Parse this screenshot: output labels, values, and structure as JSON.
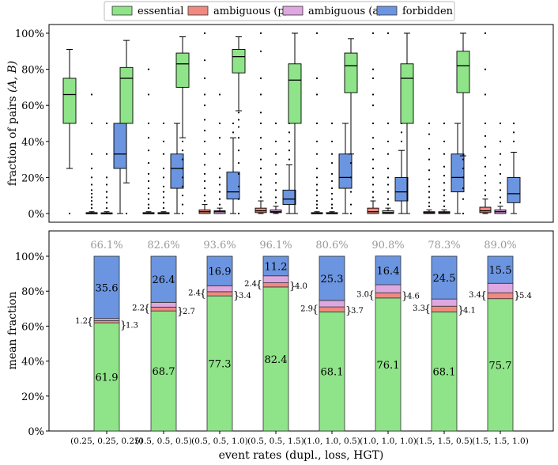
{
  "legend": {
    "entries": [
      {
        "label": "essential",
        "color": "#8fe388"
      },
      {
        "label": "ambiguous (p)",
        "color": "#f08a80"
      },
      {
        "label": "ambiguous (a)",
        "color": "#dfa7e0"
      },
      {
        "label": "forbidden",
        "color": "#6b95e0"
      }
    ]
  },
  "chart_data": [
    {
      "type": "box",
      "ylabel": "fraction of pairs (A, B)",
      "ylabel_prefix": "fraction of pairs ",
      "ylabel_vars": "(A, B)",
      "ylim": [
        0,
        100
      ],
      "yticks": [
        0,
        20,
        40,
        60,
        80,
        100
      ],
      "ytick_labels": [
        "0%",
        "20%",
        "40%",
        "60%",
        "80%",
        "100%"
      ],
      "series_order": [
        "essential",
        "ambiguous (p)",
        "ambiguous (a)",
        "forbidden"
      ],
      "groups": [
        {
          "category": "(0.25, 0.25, 0.25)",
          "boxes": [
            {
              "min": 25,
              "q1": 50,
              "median": 66,
              "q3": 75,
              "max": 91,
              "outliers": [
                0
              ]
            },
            {
              "min": 0,
              "q1": 0,
              "median": 0,
              "q3": 0.5,
              "max": 1,
              "outliers": [
                3,
                5,
                7,
                9,
                11,
                13,
                16,
                20,
                25,
                33,
                50,
                66
              ]
            },
            {
              "min": 0,
              "q1": 0,
              "median": 0,
              "q3": 0.4,
              "max": 1,
              "outliers": [
                3,
                6,
                9,
                12,
                16,
                20,
                33,
                50
              ]
            },
            {
              "min": 0,
              "q1": 25,
              "median": 33,
              "q3": 50,
              "max": 50,
              "outliers": []
            }
          ]
        },
        {
          "category": "(0.5, 0.5, 0.5)",
          "boxes": [
            {
              "min": 17,
              "q1": 50,
              "median": 75,
              "q3": 81,
              "max": 96,
              "outliers": [
                0
              ]
            },
            {
              "min": 0,
              "q1": 0,
              "median": 0,
              "q3": 0.5,
              "max": 1,
              "outliers": [
                3,
                5,
                8,
                11,
                14,
                18,
                22,
                28,
                35,
                42,
                50,
                66,
                80
              ]
            },
            {
              "min": 0,
              "q1": 0,
              "median": 0,
              "q3": 0.5,
              "max": 1,
              "outliers": [
                3,
                6,
                9,
                12,
                15,
                20,
                25,
                33,
                40,
                50
              ]
            },
            {
              "min": 0,
              "q1": 14,
              "median": 25,
              "q3": 33,
              "max": 50,
              "outliers": []
            }
          ]
        },
        {
          "category": "(0.5, 0.5, 1.0)",
          "boxes": [
            {
              "min": 42,
              "q1": 70,
              "median": 83,
              "q3": 89,
              "max": 98,
              "outliers": [
                0,
                5,
                10,
                15,
                20,
                25,
                30,
                35,
                40
              ]
            },
            {
              "min": 0,
              "q1": 0,
              "median": 1,
              "q3": 2,
              "max": 5,
              "outliers": [
                7,
                10,
                14,
                18,
                22,
                27,
                33,
                40,
                46,
                52,
                60,
                66,
                75,
                85,
                100
              ]
            },
            {
              "min": 0,
              "q1": 0,
              "median": 1,
              "q3": 1.5,
              "max": 3,
              "outliers": [
                5,
                8,
                12,
                16,
                20,
                25,
                33,
                42,
                50,
                66
              ]
            },
            {
              "min": 0,
              "q1": 8,
              "median": 12,
              "q3": 23,
              "max": 42,
              "outliers": [
                45,
                50
              ]
            }
          ]
        },
        {
          "category": "(0.5, 0.5, 1.5)",
          "boxes": [
            {
              "min": 57,
              "q1": 78,
              "median": 87,
              "q3": 91,
              "max": 98,
              "outliers": [
                0,
                8,
                15,
                22,
                28,
                35,
                42,
                48,
                52,
                56
              ]
            },
            {
              "min": 0,
              "q1": 0.5,
              "median": 1.5,
              "q3": 3,
              "max": 7,
              "outliers": [
                9,
                12,
                16,
                20,
                25,
                30,
                36,
                42,
                50,
                56,
                66,
                75,
                90,
                100
              ]
            },
            {
              "min": 0,
              "q1": 0.5,
              "median": 1,
              "q3": 2,
              "max": 4,
              "outliers": [
                6,
                9,
                13,
                17,
                22,
                27,
                33,
                40,
                50
              ]
            },
            {
              "min": 0,
              "q1": 5,
              "median": 8,
              "q3": 13,
              "max": 27,
              "outliers": [
                30,
                35,
                40,
                45,
                50
              ]
            }
          ]
        },
        {
          "category": "(1.0, 1.0, 0.5)",
          "boxes": [
            {
              "min": 0,
              "q1": 50,
              "median": 74,
              "q3": 83,
              "max": 100,
              "outliers": []
            },
            {
              "min": 0,
              "q1": 0,
              "median": 0,
              "q3": 0.5,
              "max": 1,
              "outliers": [
                3,
                5,
                7,
                10,
                13,
                16,
                20,
                25,
                33,
                40,
                50,
                66,
                75,
                100
              ]
            },
            {
              "min": 0,
              "q1": 0,
              "median": 0,
              "q3": 0.5,
              "max": 1,
              "outliers": [
                3,
                5,
                8,
                11,
                14,
                18,
                22,
                28,
                33,
                40,
                50
              ]
            },
            {
              "min": 0,
              "q1": 14,
              "median": 20,
              "q3": 33,
              "max": 50,
              "outliers": []
            }
          ]
        },
        {
          "category": "(1.0, 1.0, 1.0)",
          "boxes": [
            {
              "min": 33,
              "q1": 67,
              "median": 82,
              "q3": 89,
              "max": 97,
              "outliers": [
                0,
                5,
                12,
                20,
                28
              ]
            },
            {
              "min": 0,
              "q1": 0,
              "median": 1,
              "q3": 3,
              "max": 7,
              "outliers": [
                9,
                12,
                16,
                20,
                25,
                30,
                36,
                42,
                50,
                60,
                66,
                75,
                80,
                100
              ]
            },
            {
              "min": 0,
              "q1": 0,
              "median": 0.5,
              "q3": 1.5,
              "max": 3,
              "outliers": [
                5,
                8,
                12,
                16,
                20,
                25,
                33,
                40,
                50,
                100
              ]
            },
            {
              "min": 0,
              "q1": 7,
              "median": 12,
              "q3": 20,
              "max": 35,
              "outliers": [
                40,
                45,
                50
              ]
            }
          ]
        },
        {
          "category": "(1.5, 1.5, 0.5)",
          "boxes": [
            {
              "min": 0,
              "q1": 50,
              "median": 75,
              "q3": 83,
              "max": 100,
              "outliers": []
            },
            {
              "min": 0,
              "q1": 0,
              "median": 0.5,
              "q3": 1,
              "max": 2,
              "outliers": [
                4,
                6,
                9,
                12,
                15,
                19,
                24,
                30,
                36,
                44,
                50
              ]
            },
            {
              "min": 0,
              "q1": 0,
              "median": 0.5,
              "q3": 1,
              "max": 2,
              "outliers": [
                4,
                7,
                10,
                13,
                17,
                21,
                26,
                33,
                40,
                50
              ]
            },
            {
              "min": 0,
              "q1": 12,
              "median": 20,
              "q3": 33,
              "max": 50,
              "outliers": []
            }
          ]
        },
        {
          "category": "(1.5, 1.5, 1.0)",
          "boxes": [
            {
              "min": 32,
              "q1": 67,
              "median": 82,
              "q3": 90,
              "max": 100,
              "outliers": [
                0,
                8,
                14,
                20,
                25,
                30
              ]
            },
            {
              "min": 0,
              "q1": 0.5,
              "median": 1.5,
              "q3": 3.5,
              "max": 8,
              "outliers": [
                10,
                13,
                17,
                21,
                26,
                31,
                37,
                43,
                50,
                66,
                80,
                100
              ]
            },
            {
              "min": 0,
              "q1": 0,
              "median": 1,
              "q3": 2,
              "max": 4,
              "outliers": [
                6,
                9,
                13,
                17,
                22,
                27,
                33,
                40,
                50
              ]
            },
            {
              "min": 0,
              "q1": 6,
              "median": 11,
              "q3": 20,
              "max": 34,
              "outliers": [
                40,
                45,
                50
              ]
            }
          ]
        }
      ]
    },
    {
      "type": "stacked_bar",
      "ylabel": "mean fraction",
      "xlabel": "event rates (dupl., loss, HGT)",
      "ylim": [
        0,
        100
      ],
      "yticks": [
        0,
        20,
        40,
        60,
        80,
        100
      ],
      "ytick_labels": [
        "0%",
        "20%",
        "40%",
        "60%",
        "80%",
        "100%"
      ],
      "categories": [
        "(0.25, 0.25, 0.25)",
        "(0.5, 0.5, 0.5)",
        "(0.5, 0.5, 1.0)",
        "(0.5, 0.5, 1.5)",
        "(1.0, 1.0, 0.5)",
        "(1.0, 1.0, 1.0)",
        "(1.5, 1.5, 0.5)",
        "(1.5, 1.5, 1.0)"
      ],
      "series": [
        {
          "name": "essential",
          "values": [
            61.9,
            68.7,
            77.3,
            82.4,
            68.1,
            76.1,
            68.1,
            75.7
          ],
          "labels": [
            "61.9",
            "68.7",
            "77.3",
            "82.4",
            "68.1",
            "76.1",
            "68.1",
            "75.7"
          ]
        },
        {
          "name": "ambiguous (p)",
          "values": [
            1.2,
            2.2,
            2.4,
            2.4,
            2.9,
            3.0,
            3.3,
            3.4
          ],
          "labels": [
            "1.2",
            "2.2",
            "2.4",
            "2.4",
            "2.9",
            "3.0",
            "3.3",
            "3.4"
          ]
        },
        {
          "name": "ambiguous (a)",
          "values": [
            1.3,
            2.7,
            3.4,
            4.0,
            3.7,
            4.6,
            4.1,
            5.4
          ],
          "labels": [
            "1.3",
            "2.7",
            "3.4",
            "4.0",
            "3.7",
            "4.6",
            "4.1",
            "5.4"
          ]
        },
        {
          "name": "forbidden",
          "values": [
            35.6,
            26.4,
            16.9,
            11.2,
            25.3,
            16.4,
            24.5,
            15.5
          ],
          "labels": [
            "35.6",
            "26.4",
            "16.9",
            "11.2",
            "25.3",
            "16.4",
            "24.5",
            "15.5"
          ]
        }
      ],
      "top_annotations": [
        "66.1%",
        "82.6%",
        "93.6%",
        "96.1%",
        "80.6%",
        "90.8%",
        "78.3%",
        "89.0%"
      ],
      "brace": "{",
      "brace_right": "}"
    }
  ]
}
